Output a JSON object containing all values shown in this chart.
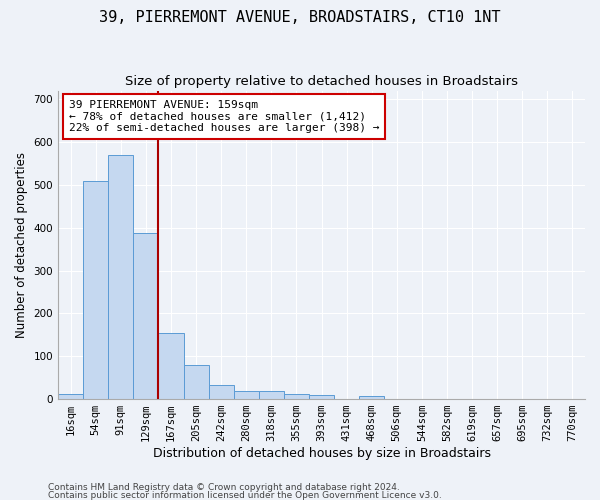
{
  "title": "39, PIERREMONT AVENUE, BROADSTAIRS, CT10 1NT",
  "subtitle": "Size of property relative to detached houses in Broadstairs",
  "xlabel": "Distribution of detached houses by size in Broadstairs",
  "ylabel": "Number of detached properties",
  "bar_labels": [
    "16sqm",
    "54sqm",
    "91sqm",
    "129sqm",
    "167sqm",
    "205sqm",
    "242sqm",
    "280sqm",
    "318sqm",
    "355sqm",
    "393sqm",
    "431sqm",
    "468sqm",
    "506sqm",
    "544sqm",
    "582sqm",
    "619sqm",
    "657sqm",
    "695sqm",
    "732sqm",
    "770sqm"
  ],
  "bar_values": [
    13,
    510,
    570,
    388,
    155,
    80,
    32,
    20,
    20,
    11,
    10,
    0,
    8,
    0,
    0,
    0,
    0,
    0,
    0,
    0,
    0
  ],
  "bar_color": "#c5d8f0",
  "bar_edge_color": "#5b9bd5",
  "property_line_color": "#aa0000",
  "annotation_text": "39 PIERREMONT AVENUE: 159sqm\n← 78% of detached houses are smaller (1,412)\n22% of semi-detached houses are larger (398) →",
  "annotation_box_color": "#ffffff",
  "annotation_box_edge_color": "#cc0000",
  "ylim": [
    0,
    720
  ],
  "yticks": [
    0,
    100,
    200,
    300,
    400,
    500,
    600,
    700
  ],
  "footnote1": "Contains HM Land Registry data © Crown copyright and database right 2024.",
  "footnote2": "Contains public sector information licensed under the Open Government Licence v3.0.",
  "background_color": "#eef2f8",
  "plot_background_color": "#eef2f8",
  "title_fontsize": 11,
  "subtitle_fontsize": 9.5,
  "tick_fontsize": 7.5,
  "ylabel_fontsize": 8.5,
  "xlabel_fontsize": 9,
  "footnote_fontsize": 6.5
}
